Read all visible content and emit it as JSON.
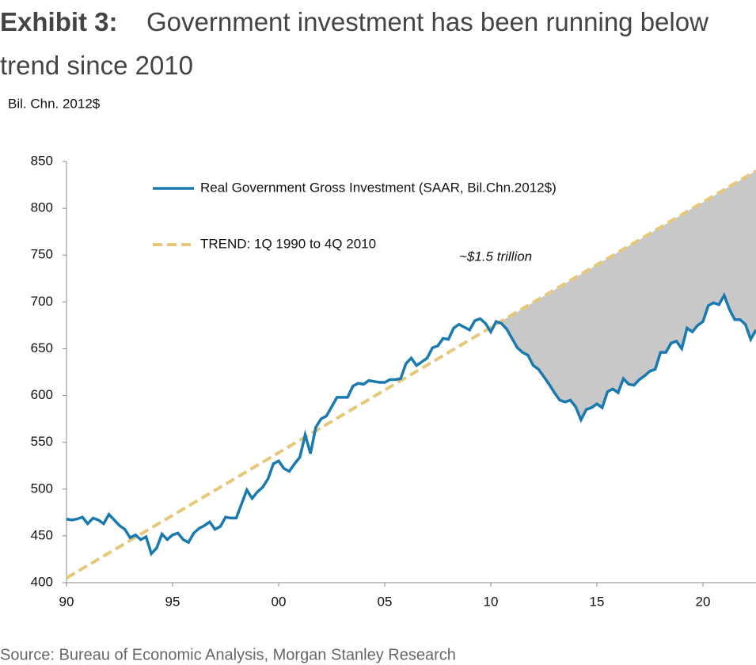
{
  "chart_data": {
    "type": "line",
    "title_label": "Exhibit 3:",
    "title": "Government investment has been running below trend since 2010",
    "y_label": "Bil. Chn. 2012$",
    "annotation": "~$1.5 trillion",
    "source": "Source: Bureau of Economic Analysis, Morgan Stanley Research",
    "xlim": [
      1990,
      2022.5
    ],
    "xticks": [
      {
        "value": 1990,
        "label": "90"
      },
      {
        "value": 1995,
        "label": "95"
      },
      {
        "value": 2000,
        "label": "00"
      },
      {
        "value": 2005,
        "label": "05"
      },
      {
        "value": 2010,
        "label": "10"
      },
      {
        "value": 2015,
        "label": "15"
      },
      {
        "value": 2020,
        "label": "20"
      }
    ],
    "ylim": [
      400,
      850
    ],
    "yticks": [
      400,
      450,
      500,
      550,
      600,
      650,
      700,
      750,
      800,
      850
    ],
    "grid": false,
    "legend": "top-left",
    "series": [
      {
        "name": "Real Government Gross Investment (SAAR, Bil.Chn.2012$)",
        "color": "#1a7ab0",
        "style": "solid",
        "x": [
          1990,
          1990.25,
          1990.5,
          1990.75,
          1991,
          1991.25,
          1991.5,
          1991.75,
          1992,
          1992.25,
          1992.5,
          1992.75,
          1993,
          1993.25,
          1993.5,
          1993.75,
          1994,
          1994.25,
          1994.5,
          1994.75,
          1995,
          1995.25,
          1995.5,
          1995.75,
          1996,
          1996.25,
          1996.5,
          1996.75,
          1997,
          1997.25,
          1997.5,
          1997.75,
          1998,
          1998.25,
          1998.5,
          1998.75,
          1999,
          1999.25,
          1999.5,
          1999.75,
          2000,
          2000.25,
          2000.5,
          2000.75,
          2001,
          2001.25,
          2001.5,
          2001.75,
          2002,
          2002.25,
          2002.5,
          2002.75,
          2003,
          2003.25,
          2003.5,
          2003.75,
          2004,
          2004.25,
          2004.5,
          2004.75,
          2005,
          2005.25,
          2005.5,
          2005.75,
          2006,
          2006.25,
          2006.5,
          2006.75,
          2007,
          2007.25,
          2007.5,
          2007.75,
          2008,
          2008.25,
          2008.5,
          2008.75,
          2009,
          2009.25,
          2009.5,
          2009.75,
          2010,
          2010.25,
          2010.5,
          2010.75,
          2011,
          2011.25,
          2011.5,
          2011.75,
          2012,
          2012.25,
          2012.5,
          2012.75,
          2013,
          2013.25,
          2013.5,
          2013.75,
          2014,
          2014.25,
          2014.5,
          2014.75,
          2015,
          2015.25,
          2015.5,
          2015.75,
          2016,
          2016.25,
          2016.5,
          2016.75,
          2017,
          2017.25,
          2017.5,
          2017.75,
          2018,
          2018.25,
          2018.5,
          2018.75,
          2019,
          2019.25,
          2019.5,
          2019.75,
          2020,
          2020.25,
          2020.5,
          2020.75,
          2021,
          2021.25,
          2021.5,
          2021.75,
          2022,
          2022.25,
          2022.5
        ],
        "values": [
          468,
          467,
          468,
          470,
          463,
          469,
          467,
          463,
          473,
          467,
          461,
          457,
          448,
          451,
          446,
          449,
          431,
          437,
          452,
          446,
          451,
          453,
          446,
          443,
          453,
          458,
          461,
          465,
          457,
          460,
          470,
          469,
          469,
          484,
          499,
          490,
          497,
          502,
          511,
          527,
          530,
          522,
          519,
          527,
          534,
          558,
          538,
          566,
          575,
          578,
          588,
          598,
          598,
          598,
          610,
          613,
          612,
          616,
          615,
          614,
          614,
          617,
          617,
          618,
          634,
          640,
          632,
          636,
          640,
          651,
          653,
          661,
          660,
          672,
          676,
          673,
          670,
          680,
          682,
          677,
          668,
          679,
          677,
          671,
          661,
          651,
          646,
          643,
          632,
          628,
          620,
          612,
          603,
          595,
          593,
          595,
          588,
          574,
          585,
          587,
          591,
          587,
          604,
          607,
          603,
          618,
          612,
          611,
          617,
          621,
          626,
          628,
          646,
          646,
          656,
          658,
          650,
          672,
          668,
          675,
          679,
          696,
          699,
          697,
          707,
          692,
          681,
          681,
          676,
          660,
          670
        ]
      },
      {
        "name": "TREND: 1Q 1990 to 4Q 2010",
        "color": "#e5c87a",
        "style": "dashed",
        "x": [
          1990,
          2022.5
        ],
        "values": [
          405,
          840
        ]
      }
    ],
    "shade_color": "#c8c8c8"
  }
}
